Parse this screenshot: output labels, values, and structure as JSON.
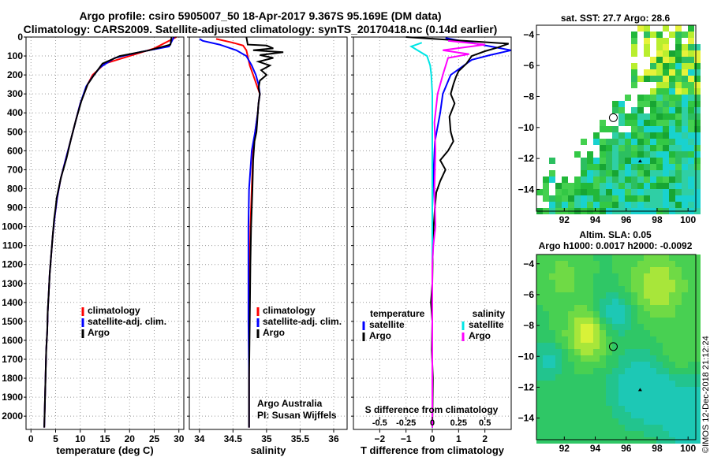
{
  "header": {
    "line1": "Argo profile: csiro 5905007_50 18-Apr-2017 9.367S 95.169E (DM data)",
    "line2": "Climatology: CARS2009. Satellite-adjusted climatology: synTS_20170418.nc (0.14d earlier)"
  },
  "chart_data": [
    {
      "type": "line",
      "id": "temperature",
      "xlabel": "temperature (deg C)",
      "xlim": [
        -1,
        31
      ],
      "xticks": [
        0,
        5,
        10,
        15,
        20,
        25,
        30
      ],
      "ylim": [
        2070,
        0
      ],
      "yticks": [
        0,
        100,
        200,
        300,
        400,
        500,
        600,
        700,
        800,
        900,
        1000,
        1100,
        1200,
        1300,
        1400,
        1500,
        1600,
        1700,
        1800,
        1900,
        2000
      ],
      "grid": true,
      "legend": [
        "climatology",
        "satellite-adj. clim.",
        "Argo"
      ],
      "legend_position": "bottom-right",
      "series": [
        {
          "name": "climatology",
          "color": "#ff0000",
          "points": [
            [
              29.5,
              0
            ],
            [
              25,
              60
            ],
            [
              20,
              100
            ],
            [
              15,
              140
            ],
            [
              12.5,
              200
            ],
            [
              11.5,
              250
            ],
            [
              10,
              350
            ],
            [
              9,
              450
            ],
            [
              8,
              550
            ],
            [
              7,
              650
            ],
            [
              6,
              750
            ],
            [
              5.3,
              850
            ],
            [
              4.8,
              950
            ],
            [
              4.4,
              1050
            ],
            [
              4.1,
              1150
            ],
            [
              3.8,
              1250
            ],
            [
              3.6,
              1350
            ],
            [
              3.4,
              1450
            ],
            [
              3.3,
              1550
            ],
            [
              3.1,
              1650
            ],
            [
              3,
              1750
            ],
            [
              2.9,
              1850
            ],
            [
              2.8,
              1950
            ],
            [
              2.7,
              2060
            ]
          ]
        },
        {
          "name": "satellite-adj. clim.",
          "color": "#0000ff",
          "points": [
            [
              29,
              0
            ],
            [
              28,
              50
            ],
            [
              22,
              80
            ],
            [
              17,
              110
            ],
            [
              14,
              160
            ],
            [
              12.5,
              210
            ],
            [
              11.2,
              260
            ],
            [
              10,
              350
            ],
            [
              9,
              450
            ],
            [
              8,
              550
            ],
            [
              7,
              650
            ],
            [
              6,
              750
            ],
            [
              5.3,
              850
            ],
            [
              4.8,
              950
            ],
            [
              4.4,
              1050
            ],
            [
              4.1,
              1150
            ],
            [
              3.8,
              1250
            ],
            [
              3.6,
              1350
            ],
            [
              3.4,
              1450
            ],
            [
              3.3,
              1550
            ],
            [
              3.1,
              1650
            ],
            [
              3,
              1750
            ],
            [
              2.9,
              1850
            ],
            [
              2.8,
              1950
            ],
            [
              2.7,
              2060
            ]
          ]
        },
        {
          "name": "Argo",
          "color": "#000000",
          "points": [
            [
              28.5,
              0
            ],
            [
              28.3,
              40
            ],
            [
              24,
              70
            ],
            [
              18,
              100
            ],
            [
              14.5,
              140
            ],
            [
              12.8,
              200
            ],
            [
              11.5,
              250
            ],
            [
              10.2,
              340
            ],
            [
              9.1,
              440
            ],
            [
              8.1,
              540
            ],
            [
              7.2,
              640
            ],
            [
              6.1,
              740
            ],
            [
              5.6,
              800
            ],
            [
              5.2,
              850
            ],
            [
              5,
              900
            ],
            [
              4.7,
              960
            ],
            [
              4.4,
              1050
            ],
            [
              4.1,
              1150
            ],
            [
              3.8,
              1250
            ],
            [
              3.6,
              1350
            ],
            [
              3.4,
              1450
            ],
            [
              3.3,
              1550
            ],
            [
              3.1,
              1650
            ],
            [
              3,
              1750
            ],
            [
              2.9,
              1850
            ],
            [
              2.8,
              1950
            ],
            [
              2.7,
              2060
            ]
          ]
        }
      ]
    },
    {
      "type": "line",
      "id": "salinity",
      "xlabel": "salinity",
      "xlim": [
        33.85,
        36.2
      ],
      "xticks": [
        34,
        34.5,
        35,
        35.5,
        36
      ],
      "ylim": [
        2070,
        0
      ],
      "grid": true,
      "legend": [
        "climatology",
        "satellite-adj. clim.",
        "Argo"
      ],
      "legend_position": "bottom-right",
      "annotations": [
        "Argo Australia",
        "PI: Susan Wijffels"
      ],
      "series": [
        {
          "name": "climatology",
          "color": "#ff0000",
          "points": [
            [
              34.25,
              10
            ],
            [
              34.5,
              30
            ],
            [
              34.65,
              45
            ],
            [
              34.7,
              70
            ],
            [
              34.72,
              100
            ],
            [
              34.75,
              150
            ],
            [
              34.8,
              200
            ],
            [
              34.85,
              250
            ],
            [
              34.9,
              300
            ],
            [
              34.88,
              350
            ],
            [
              34.87,
              400
            ],
            [
              34.85,
              450
            ],
            [
              34.83,
              500
            ],
            [
              34.8,
              600
            ],
            [
              34.79,
              700
            ],
            [
              34.78,
              800
            ],
            [
              34.76,
              1000
            ],
            [
              34.75,
              1200
            ],
            [
              34.74,
              1500
            ],
            [
              34.74,
              2060
            ]
          ]
        },
        {
          "name": "satellite-adj. clim.",
          "color": "#0000ff",
          "points": [
            [
              34.0,
              10
            ],
            [
              34.05,
              20
            ],
            [
              34.3,
              40
            ],
            [
              34.55,
              70
            ],
            [
              34.7,
              100
            ],
            [
              34.78,
              150
            ],
            [
              34.84,
              200
            ],
            [
              34.88,
              250
            ],
            [
              34.9,
              300
            ],
            [
              34.88,
              350
            ],
            [
              34.87,
              400
            ],
            [
              34.85,
              450
            ],
            [
              34.83,
              500
            ],
            [
              34.78,
              600
            ],
            [
              34.76,
              700
            ],
            [
              34.74,
              800
            ],
            [
              34.73,
              1000
            ],
            [
              34.73,
              1200
            ],
            [
              34.73,
              1500
            ],
            [
              34.74,
              1800
            ],
            [
              34.74,
              2060
            ]
          ]
        },
        {
          "name": "Argo",
          "color": "#000000",
          "points": [
            [
              34.7,
              0
            ],
            [
              34.72,
              40
            ],
            [
              35.0,
              45
            ],
            [
              35.1,
              60
            ],
            [
              34.8,
              70
            ],
            [
              35.25,
              80
            ],
            [
              34.9,
              95
            ],
            [
              35.1,
              110
            ],
            [
              34.88,
              130
            ],
            [
              35.05,
              150
            ],
            [
              34.92,
              175
            ],
            [
              35.0,
              200
            ],
            [
              34.9,
              230
            ],
            [
              34.88,
              270
            ],
            [
              34.9,
              300
            ],
            [
              34.88,
              350
            ],
            [
              34.87,
              400
            ],
            [
              34.86,
              450
            ],
            [
              34.85,
              500
            ],
            [
              34.82,
              550
            ],
            [
              34.8,
              650
            ],
            [
              34.79,
              800
            ],
            [
              34.77,
              1000
            ],
            [
              34.76,
              1200
            ],
            [
              34.75,
              1500
            ],
            [
              34.74,
              1800
            ],
            [
              34.74,
              2060
            ]
          ]
        }
      ]
    },
    {
      "type": "line",
      "id": "difference",
      "xlabel": "T difference from climatology",
      "xlim": [
        -3,
        3
      ],
      "xticks": [
        -2,
        -1,
        0,
        1,
        2
      ],
      "xticks_secondary": [
        "-0.5",
        "-0.25",
        "0",
        "0.25",
        "0.5"
      ],
      "xticks_secondary_values": [
        -0.5,
        -0.25,
        0,
        0.25,
        0.5
      ],
      "secondary_xlabel": "S difference from climatology",
      "ylim": [
        2070,
        0
      ],
      "grid": true,
      "legend_temperature_title": "temperature",
      "legend_salinity_title": "salinity",
      "legend_temperature": [
        "satellite",
        "Argo"
      ],
      "legend_salinity": [
        "satellite",
        "Argo"
      ],
      "series": [
        {
          "name": "temperature satellite",
          "color": "#0000ff",
          "points": [
            [
              0.5,
              5
            ],
            [
              3,
              70
            ],
            [
              2.2,
              95
            ],
            [
              1.5,
              120
            ],
            [
              0.7,
              200
            ],
            [
              0.4,
              300
            ],
            [
              0.3,
              400
            ],
            [
              0.1,
              550
            ],
            [
              0.05,
              700
            ],
            [
              0,
              900
            ],
            [
              0,
              1200
            ],
            [
              0,
              1500
            ],
            [
              0,
              2060
            ]
          ]
        },
        {
          "name": "temperature Argo",
          "color": "#000000",
          "points": [
            [
              -1,
              0
            ],
            [
              2.9,
              35
            ],
            [
              2.5,
              55
            ],
            [
              2.0,
              75
            ],
            [
              1.5,
              100
            ],
            [
              1.3,
              140
            ],
            [
              1.0,
              180
            ],
            [
              0.9,
              210
            ],
            [
              0.8,
              250
            ],
            [
              0.7,
              300
            ],
            [
              0.85,
              350
            ],
            [
              0.65,
              420
            ],
            [
              0.7,
              500
            ],
            [
              0.8,
              550
            ],
            [
              0.6,
              600
            ],
            [
              0.3,
              650
            ],
            [
              0.5,
              700
            ],
            [
              0.3,
              760
            ],
            [
              0.15,
              820
            ],
            [
              0.1,
              900
            ],
            [
              0.05,
              1000
            ],
            [
              0.02,
              1100
            ],
            [
              0,
              1300
            ],
            [
              -0.05,
              1400
            ],
            [
              0,
              1500
            ],
            [
              -0.02,
              1650
            ],
            [
              0.02,
              1800
            ],
            [
              0,
              2060
            ]
          ]
        },
        {
          "name": "salinity satellite",
          "color": "#00e5e5",
          "points": [
            [
              -0.1,
              30
            ],
            [
              -0.2,
              50
            ],
            [
              -0.05,
              100
            ],
            [
              -0.02,
              150
            ],
            [
              -0.01,
              200
            ],
            [
              0,
              300
            ],
            [
              0,
              500
            ],
            [
              0,
              800
            ],
            [
              0,
              1200
            ],
            [
              0,
              1500
            ],
            [
              0,
              2060
            ]
          ]
        },
        {
          "name": "salinity Argo",
          "color": "#ff00ff",
          "points": [
            [
              0.15,
              20
            ],
            [
              0.5,
              40
            ],
            [
              0.1,
              70
            ],
            [
              0.35,
              90
            ],
            [
              0.15,
              110
            ],
            [
              0.1,
              200
            ],
            [
              0.05,
              300
            ],
            [
              0.02,
              450
            ],
            [
              0.03,
              600
            ],
            [
              0.02,
              800
            ],
            [
              0.03,
              1000
            ],
            [
              0.01,
              1100
            ],
            [
              0,
              1200
            ],
            [
              0,
              1500
            ],
            [
              0,
              2060
            ]
          ]
        }
      ]
    },
    {
      "type": "heatmap",
      "id": "sst-map",
      "title": "sat. SST: 27.7 Argo: 28.6",
      "xlim": [
        90.2,
        100.5
      ],
      "ylim": [
        -15.4,
        -3.4
      ],
      "xticks": [
        92,
        94,
        96,
        98,
        100
      ],
      "yticks": [
        -4,
        -6,
        -8,
        -10,
        -12,
        -14
      ],
      "profile_marker": {
        "lon": 95.169,
        "lat": -9.367
      },
      "secondary_marker": {
        "lon": 96.9,
        "lat": -12.2
      }
    },
    {
      "type": "heatmap",
      "id": "sla-map",
      "title": "Altim. SLA: 0.05",
      "subtitle": "Argo h1000: 0.0017 h2000: -0.0092",
      "xlim": [
        90.2,
        100.5
      ],
      "ylim": [
        -15.4,
        -3.4
      ],
      "xticks": [
        92,
        94,
        96,
        98,
        100
      ],
      "yticks": [
        -4,
        -6,
        -8,
        -10,
        -12,
        -14
      ],
      "profile_marker": {
        "lon": 95.169,
        "lat": -9.367
      },
      "secondary_marker": {
        "lon": 96.9,
        "lat": -12.2
      }
    }
  ],
  "credit": "©IMOS 12-Dec-2018 21:12:24"
}
